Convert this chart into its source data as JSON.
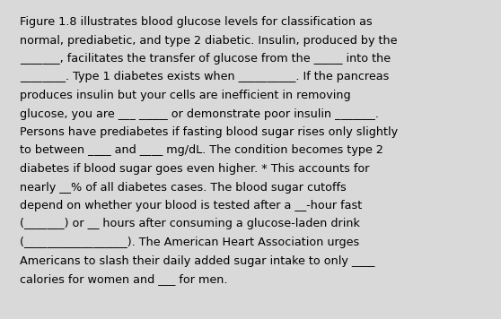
{
  "background_color": "#d9d9d9",
  "text_color": "#000000",
  "font_size": 9.2,
  "figsize": [
    5.58,
    3.56
  ],
  "dpi": 100,
  "lines": [
    "Figure 1.8 illustrates blood glucose levels for classification as",
    "normal, prediabetic, and type 2 diabetic. Insulin, produced by the",
    "_______, facilitates the transfer of glucose from the _____ into the",
    "________. Type 1 diabetes exists when __________. If the pancreas",
    "produces insulin but your cells are inefficient in removing",
    "glucose, you are ___ _____ or demonstrate poor insulin _______.",
    "Persons have prediabetes if fasting blood sugar rises only slightly",
    "to between ____ and ____ mg/dL. The condition becomes type 2",
    "diabetes if blood sugar goes even higher. * This accounts for",
    "nearly __% of all diabetes cases. The blood sugar cutoffs",
    "depend on whether your blood is tested after a __-hour fast",
    "(_______) or __ hours after consuming a glucose-laden drink",
    "(__________________). The American Heart Association urges",
    "Americans to slash their daily added sugar intake to only ____",
    "calories for women and ___ for men."
  ]
}
